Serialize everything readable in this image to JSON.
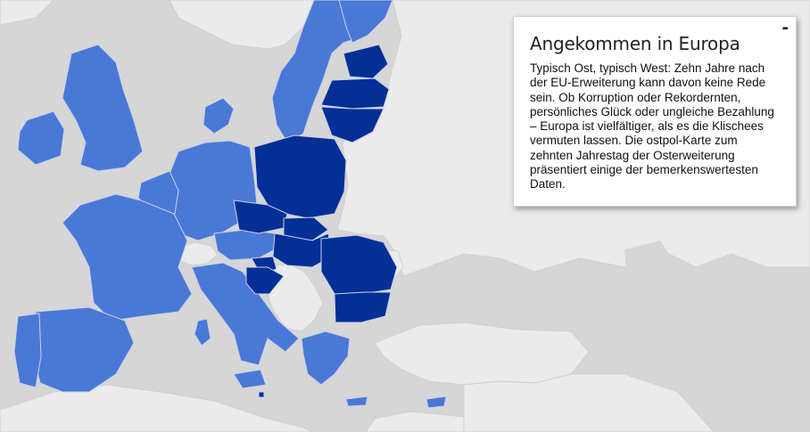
{
  "map": {
    "colors": {
      "background": "#d6d6d6",
      "land_non_eu": "#e8e8e8",
      "sea_dark_land": "#c9c9c9",
      "eu_old": "#4a78d6",
      "eu_new_2004_2007": "#032f96",
      "border": "#c8d2ea"
    },
    "legend_groups": [
      "eu-old-members",
      "eu-2004-2007-members",
      "non-eu"
    ]
  },
  "info_panel": {
    "title": "Angekommen in Europa",
    "text": "Typisch Ost, typisch West: Zehn Jahre nach der EU-Erweiterung kann davon keine Rede sein. Ob Korruption oder Rekordernten, persönliches Glück oder ungleiche Bezahlung – Europa ist vielfältiger, als es die Klischees vermuten lassen. Die ostpol-Karte zum zehnten Jahrestag der Osterweiterung präsentiert einige der bemerkenswertesten Daten.",
    "minimize_label": "-"
  }
}
